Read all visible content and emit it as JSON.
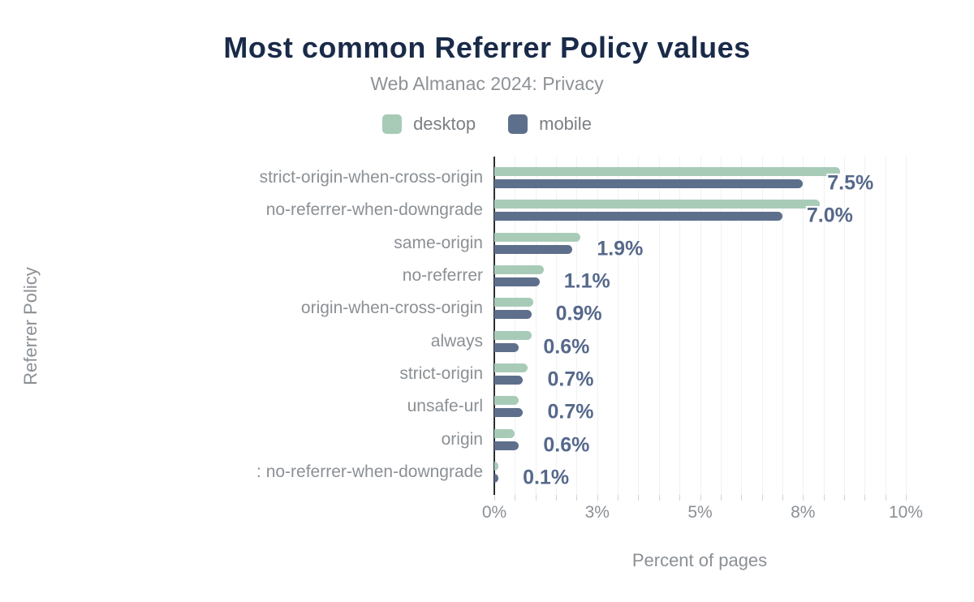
{
  "header": {
    "title": "Most common Referrer Policy values",
    "subtitle": "Web Almanac 2024: Privacy"
  },
  "legend": {
    "position": "top-center",
    "items": [
      {
        "label": "desktop",
        "color": "#a8cbb8"
      },
      {
        "label": "mobile",
        "color": "#5d6f8b"
      }
    ]
  },
  "chart_data": {
    "type": "bar",
    "orientation": "horizontal",
    "title": "Most common Referrer Policy values",
    "subtitle": "Web Almanac 2024: Privacy",
    "xlabel": "Percent of pages",
    "ylabel": "Referrer Policy",
    "xlim": [
      0,
      10
    ],
    "grid": "minor vertical gridlines every 0.5%",
    "x_ticks": [
      {
        "value": 0,
        "label": "0%"
      },
      {
        "value": 2.5,
        "label": "3%"
      },
      {
        "value": 5,
        "label": "5%"
      },
      {
        "value": 7.5,
        "label": "8%"
      },
      {
        "value": 10,
        "label": "10%"
      }
    ],
    "categories": [
      "strict-origin-when-cross-origin",
      "no-referrer-when-downgrade",
      "same-origin",
      "no-referrer",
      "origin-when-cross-origin",
      "always",
      "strict-origin",
      "unsafe-url",
      "origin",
      ": no-referrer-when-downgrade"
    ],
    "series": [
      {
        "name": "desktop",
        "color": "#a8cbb8",
        "values": [
          8.4,
          7.9,
          2.1,
          1.2,
          0.95,
          0.9,
          0.8,
          0.6,
          0.5,
          0.1
        ]
      },
      {
        "name": "mobile",
        "color": "#5d6f8b",
        "values": [
          7.5,
          7.0,
          1.9,
          1.1,
          0.9,
          0.6,
          0.7,
          0.7,
          0.6,
          0.1
        ]
      }
    ],
    "data_labels": {
      "series": "mobile",
      "values": [
        "7.5%",
        "7.0%",
        "1.9%",
        "1.1%",
        "0.9%",
        "0.6%",
        "0.7%",
        "0.7%",
        "0.6%",
        "0.1%"
      ],
      "color": "#56688b"
    }
  },
  "colors": {
    "title": "#1a2b49",
    "subtitle": "#8d9297",
    "axis_text": "#8b9095",
    "axis_line": "#2a2e33",
    "gridline": "#f0f1f3",
    "desktop": "#a8cbb8",
    "mobile": "#5d6f8b",
    "value_label": "#56688b"
  }
}
